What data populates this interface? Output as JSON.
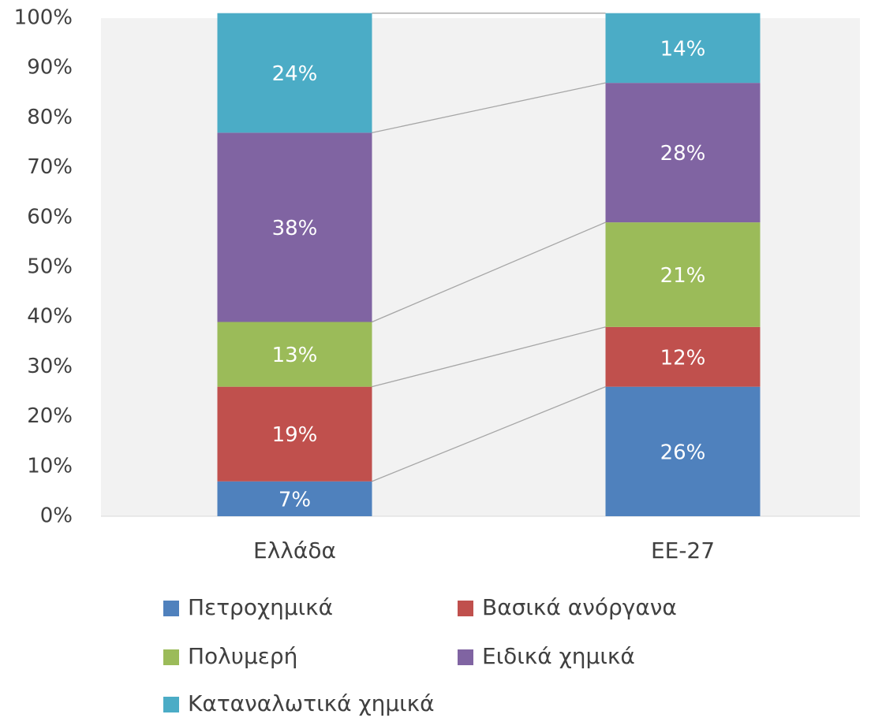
{
  "chart_data": {
    "type": "stacked_bar",
    "categories": [
      "Ελλάδα",
      "ΕΕ-27"
    ],
    "series": [
      {
        "name": "Πετροχημικά",
        "color": "#4f81bd",
        "values": [
          7,
          26
        ],
        "value_labels": [
          "7%",
          "26%"
        ]
      },
      {
        "name": "Βασικά ανόργανα",
        "color": "#c0504d",
        "values": [
          19,
          12
        ],
        "value_labels": [
          "19%",
          "12%"
        ]
      },
      {
        "name": "Πολυμερή",
        "color": "#9bbb59",
        "values": [
          13,
          21
        ],
        "value_labels": [
          "13%",
          "21%"
        ]
      },
      {
        "name": "Ειδικά χημικά",
        "color": "#8064a2",
        "values": [
          38,
          28
        ],
        "value_labels": [
          "38%",
          "28%"
        ]
      },
      {
        "name": "Καταναλωτικά χημικά",
        "color": "#4bacc6",
        "values": [
          24,
          14
        ],
        "value_labels": [
          "24%",
          "14%"
        ]
      }
    ],
    "ylim": [
      0,
      100
    ],
    "yticks": [
      {
        "value": 0,
        "label": "0%"
      },
      {
        "value": 10,
        "label": "10%"
      },
      {
        "value": 20,
        "label": "20%"
      },
      {
        "value": 30,
        "label": "30%"
      },
      {
        "value": 40,
        "label": "40%"
      },
      {
        "value": 50,
        "label": "50%"
      },
      {
        "value": 60,
        "label": "60%"
      },
      {
        "value": 70,
        "label": "70%"
      },
      {
        "value": 80,
        "label": "80%"
      },
      {
        "value": 90,
        "label": "90%"
      },
      {
        "value": 100,
        "label": "100%"
      }
    ],
    "legend": "bottom"
  }
}
